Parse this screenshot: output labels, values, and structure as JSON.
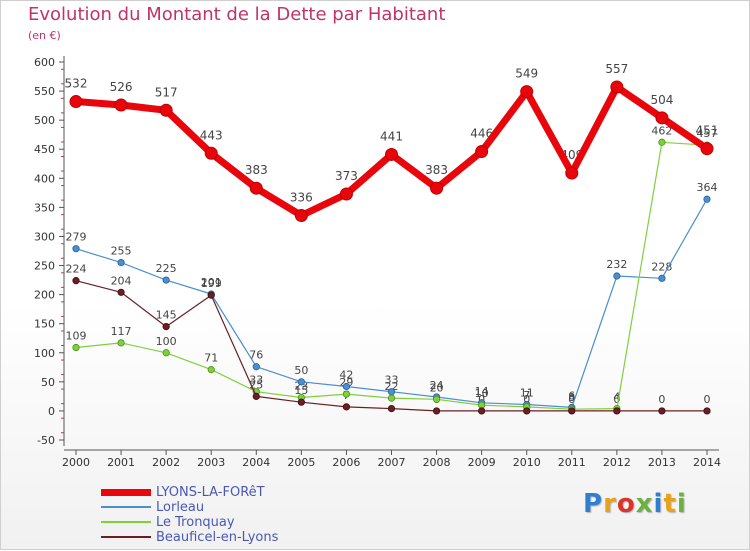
{
  "header": {
    "title": "Evolution du Montant de la Dette par Habitant",
    "unit": "(en €)"
  },
  "logo": {
    "text": "Proxiti",
    "letter_colors": [
      "#2f7fd0",
      "#e8a21a",
      "#d9362b",
      "#6cb13f",
      "#2f7fd0",
      "#e8a21a",
      "#6cb13f"
    ]
  },
  "chart_data": {
    "type": "line",
    "title": "Evolution du Montant de la Dette par Habitant",
    "ylabel": "(en €)",
    "xlabel": "",
    "ylim": [
      -50,
      600
    ],
    "yticks": [
      -50,
      0,
      50,
      100,
      150,
      200,
      250,
      300,
      350,
      400,
      450,
      500,
      550,
      600
    ],
    "grid": false,
    "legend_position": "bottom-left",
    "x": [
      "2000",
      "2001",
      "2002",
      "2003",
      "2004",
      "2005",
      "2006",
      "2007",
      "2008",
      "2009",
      "2010",
      "2011",
      "2012",
      "2013",
      "2014"
    ],
    "series": [
      {
        "name": "LYONS-LA-FORêT",
        "color": "#e8050b",
        "values": [
          532,
          526,
          517,
          443,
          383,
          336,
          373,
          441,
          383,
          446,
          549,
          409,
          557,
          504,
          451
        ],
        "labels": [
          "532",
          "526",
          "517",
          "443",
          "383",
          "336",
          "373",
          "441",
          "383",
          "446",
          "549",
          "409",
          "557",
          "504",
          "451"
        ]
      },
      {
        "name": "Lorleau",
        "color": "#4a8fd0",
        "values": [
          279,
          255,
          225,
          201,
          76,
          50,
          42,
          33,
          24,
          14,
          11,
          6,
          232,
          228,
          364
        ],
        "labels": [
          "279",
          "255",
          "225",
          "201",
          "76",
          "50",
          "42",
          "33",
          "24",
          "14",
          "11",
          "6",
          "232",
          "228",
          "364"
        ]
      },
      {
        "name": "Le Tronquay",
        "color": "#7fd13c",
        "values": [
          109,
          117,
          100,
          71,
          33,
          23,
          29,
          22,
          20,
          10,
          7,
          3,
          4,
          462,
          457
        ],
        "labels": [
          "109",
          "117",
          "100",
          "71",
          "33",
          "23",
          "29",
          "22",
          "20",
          "10",
          "7",
          "3",
          "4",
          "462",
          "457"
        ]
      },
      {
        "name": "Beauficel-en-Lyons",
        "color": "#6b1f24",
        "values": [
          224,
          204,
          145,
          199,
          25,
          15,
          7,
          4,
          0,
          0,
          0,
          0,
          0,
          0,
          0
        ],
        "labels": [
          "224",
          "204",
          "145",
          "199",
          "25",
          "15",
          "7",
          "4",
          "0",
          "0",
          "0",
          "0",
          "0",
          "0",
          "0"
        ]
      }
    ]
  }
}
